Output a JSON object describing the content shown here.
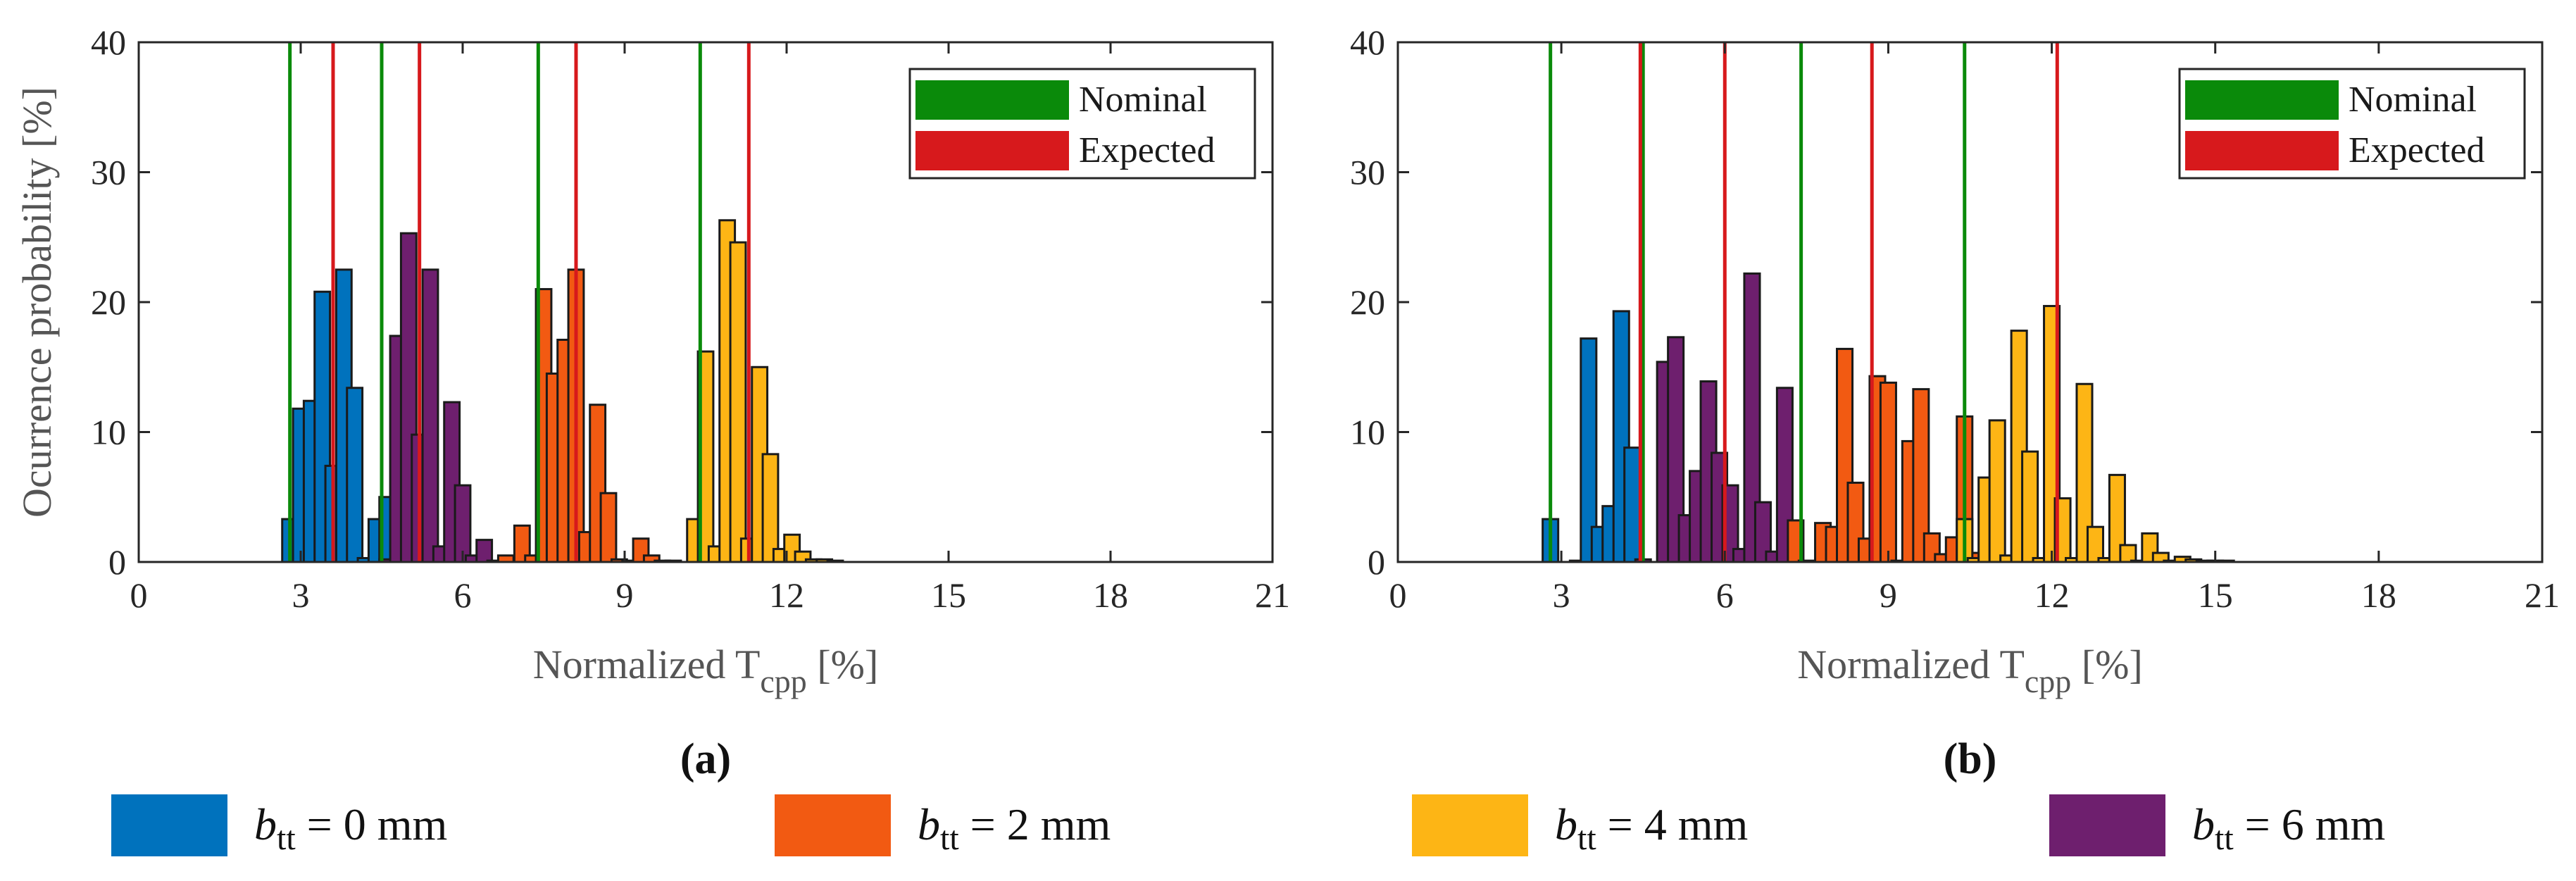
{
  "colors": {
    "b0": "#0072BD",
    "b2": "#F25A12",
    "b4": "#FDB515",
    "b6": "#6E1F6E",
    "nominal": "#0A8A0A",
    "expected": "#D7191C",
    "axis": "#262626"
  },
  "legend_bottom": [
    {
      "symbol": "b",
      "sub": "tt",
      "rest": " = 0 mm",
      "series": "b0"
    },
    {
      "symbol": "b",
      "sub": "tt",
      "rest": " = 2 mm",
      "series": "b2"
    },
    {
      "symbol": "b",
      "sub": "tt",
      "rest": " = 4 mm",
      "series": "b4"
    },
    {
      "symbol": "b",
      "sub": "tt",
      "rest": " = 6 mm",
      "series": "b6"
    }
  ],
  "chart_data": [
    {
      "type": "bar",
      "panel_label": "(a)",
      "ylabel": "Ocurrence probability [%]",
      "xlabel_main": "Normalized T",
      "xlabel_sub": "cpp",
      "xlabel_tail": " [%]",
      "xlim": [
        0,
        21
      ],
      "ylim": [
        0,
        40
      ],
      "xticks": [
        0,
        3,
        6,
        9,
        12,
        15,
        18,
        21
      ],
      "yticks": [
        0,
        10,
        20,
        30,
        40
      ],
      "bar_width": 0.3,
      "legend": {
        "position": "top-right",
        "entries": [
          {
            "label": "Nominal",
            "key": "nominal"
          },
          {
            "label": "Expected",
            "key": "expected"
          }
        ]
      },
      "nominal_lines": [
        2.8,
        4.5,
        7.4,
        10.4
      ],
      "expected_lines": [
        3.6,
        5.2,
        8.1,
        11.3
      ],
      "series": [
        {
          "name": "b0",
          "x": [
            2.8,
            3.0,
            3.2,
            3.4,
            3.6,
            3.8,
            4.0,
            4.2,
            4.4,
            4.6
          ],
          "y": [
            3.3,
            11.8,
            12.4,
            20.8,
            7.4,
            22.5,
            13.4,
            0.3,
            3.3,
            5.0
          ]
        },
        {
          "name": "b6",
          "x": [
            4.6,
            4.8,
            5.0,
            5.2,
            5.4,
            5.6,
            5.8,
            6.0,
            6.2,
            6.4,
            6.6
          ],
          "y": [
            0.2,
            17.4,
            25.3,
            9.8,
            22.5,
            1.2,
            12.3,
            5.9,
            0.5,
            1.7,
            0.1
          ]
        },
        {
          "name": "b2",
          "x": [
            6.8,
            7.1,
            7.3,
            7.5,
            7.7,
            7.9,
            8.1,
            8.3,
            8.5,
            8.7,
            8.9,
            9.1,
            9.3,
            9.5,
            9.7,
            9.9
          ],
          "y": [
            0.5,
            2.8,
            0.5,
            21.0,
            14.5,
            17.1,
            22.5,
            2.3,
            12.1,
            5.3,
            0.2,
            0.1,
            1.8,
            0.5,
            0.1,
            0.1
          ]
        },
        {
          "name": "b4",
          "x": [
            10.3,
            10.5,
            10.7,
            10.9,
            11.1,
            11.3,
            11.5,
            11.7,
            11.9,
            12.1,
            12.3,
            12.5,
            12.7,
            12.9
          ],
          "y": [
            3.3,
            16.2,
            1.2,
            26.3,
            24.6,
            1.8,
            15.0,
            8.3,
            1.0,
            2.1,
            0.8,
            0.2,
            0.2,
            0.1
          ]
        }
      ]
    },
    {
      "type": "bar",
      "panel_label": "(b)",
      "ylabel": "",
      "xlabel_main": "Normalized T",
      "xlabel_sub": "cpp",
      "xlabel_tail": " [%]",
      "xlim": [
        0,
        21
      ],
      "ylim": [
        0,
        40
      ],
      "xticks": [
        0,
        3,
        6,
        9,
        12,
        15,
        18,
        21
      ],
      "yticks": [
        0,
        10,
        20,
        30,
        40
      ],
      "bar_width": 0.3,
      "legend": {
        "position": "top-right",
        "entries": [
          {
            "label": "Nominal",
            "key": "nominal"
          },
          {
            "label": "Expected",
            "key": "expected"
          }
        ]
      },
      "nominal_lines": [
        2.8,
        4.5,
        7.4,
        10.4
      ],
      "expected_lines": [
        4.45,
        6.0,
        8.7,
        12.1
      ],
      "series": [
        {
          "name": "b0",
          "x": [
            2.8,
            3.3,
            3.5,
            3.7,
            3.9,
            4.1,
            4.3
          ],
          "y": [
            3.3,
            0.1,
            17.2,
            2.7,
            4.3,
            19.3,
            8.8
          ]
        },
        {
          "name": "b6",
          "x": [
            4.5,
            4.9,
            5.1,
            5.3,
            5.5,
            5.7,
            5.9,
            6.1,
            6.3,
            6.5,
            6.7,
            6.9,
            7.1
          ],
          "y": [
            0.2,
            15.4,
            17.3,
            3.6,
            7.0,
            13.9,
            8.4,
            5.9,
            1.0,
            22.2,
            4.6,
            0.8,
            13.4
          ]
        },
        {
          "name": "b2",
          "x": [
            7.3,
            7.5,
            7.8,
            8.0,
            8.2,
            8.4,
            8.6,
            8.8,
            9.0,
            9.2,
            9.4,
            9.6,
            9.8,
            10.0,
            10.2,
            10.4,
            10.6
          ],
          "y": [
            3.2,
            0.1,
            3.0,
            2.7,
            16.4,
            6.1,
            1.8,
            14.3,
            13.8,
            0.1,
            9.3,
            13.3,
            2.2,
            0.6,
            1.9,
            11.2,
            0.7
          ]
        },
        {
          "name": "b4",
          "x": [
            10.4,
            10.6,
            10.8,
            11.0,
            11.2,
            11.4,
            11.6,
            11.8,
            12.0,
            12.2,
            12.4,
            12.6,
            12.8,
            13.0,
            13.2,
            13.4,
            13.6,
            13.8,
            14.0,
            14.2,
            14.4,
            14.6,
            14.8,
            15.0,
            15.2
          ],
          "y": [
            3.3,
            0.3,
            6.5,
            10.9,
            0.5,
            17.8,
            8.5,
            0.3,
            19.7,
            4.9,
            0.3,
            13.7,
            2.7,
            0.3,
            6.7,
            1.3,
            0.1,
            2.2,
            0.7,
            0.1,
            0.4,
            0.2,
            0.1,
            0.1,
            0.1
          ]
        }
      ]
    }
  ]
}
